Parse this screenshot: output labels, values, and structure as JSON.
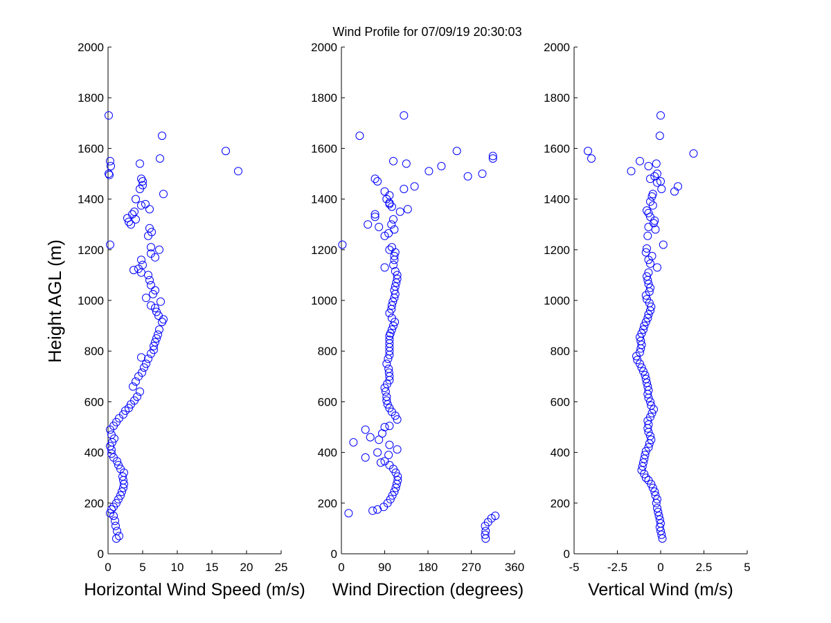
{
  "title": "Wind Profile for  07/09/19 20:30:03",
  "ylabel": "Height AGL (m)",
  "marker_color": "#0000ff",
  "chart_data": [
    {
      "type": "scatter",
      "xlabel": "Horizontal Wind Speed (m/s)",
      "xlim": [
        0,
        25
      ],
      "ylim": [
        0,
        2000
      ],
      "xticks": [
        0,
        5,
        10,
        15,
        20,
        25
      ],
      "xtick_labels": [
        "0",
        "5",
        "10",
        "15",
        "20",
        "25"
      ],
      "yticks": [
        0,
        200,
        400,
        600,
        800,
        1000,
        1200,
        1400,
        1600,
        1800,
        2000
      ],
      "ytick_labels": [
        "0",
        "200",
        "400",
        "600",
        "800",
        "1000",
        "1200",
        "1400",
        "1600",
        "1800",
        "2000"
      ],
      "points": [
        [
          1.2,
          60
        ],
        [
          1.6,
          70
        ],
        [
          1.3,
          90
        ],
        [
          1.1,
          110
        ],
        [
          1.0,
          130
        ],
        [
          0.8,
          150
        ],
        [
          0.3,
          160
        ],
        [
          0.5,
          175
        ],
        [
          0.8,
          185
        ],
        [
          1.2,
          200
        ],
        [
          1.5,
          215
        ],
        [
          1.8,
          230
        ],
        [
          2.0,
          245
        ],
        [
          2.2,
          260
        ],
        [
          2.3,
          275
        ],
        [
          2.2,
          290
        ],
        [
          2.1,
          305
        ],
        [
          2.3,
          320
        ],
        [
          1.8,
          335
        ],
        [
          1.5,
          350
        ],
        [
          1.3,
          365
        ],
        [
          0.8,
          380
        ],
        [
          0.5,
          395
        ],
        [
          0.5,
          410
        ],
        [
          0.3,
          425
        ],
        [
          0.6,
          440
        ],
        [
          0.9,
          455
        ],
        [
          0.5,
          470
        ],
        [
          0.3,
          490
        ],
        [
          0.8,
          505
        ],
        [
          1.2,
          520
        ],
        [
          1.6,
          535
        ],
        [
          2.2,
          550
        ],
        [
          2.5,
          565
        ],
        [
          3.0,
          575
        ],
        [
          3.3,
          590
        ],
        [
          3.8,
          605
        ],
        [
          4.2,
          620
        ],
        [
          4.6,
          640
        ],
        [
          3.6,
          660
        ],
        [
          4.0,
          680
        ],
        [
          4.4,
          700
        ],
        [
          4.9,
          715
        ],
        [
          5.2,
          735
        ],
        [
          5.5,
          750
        ],
        [
          5.8,
          770
        ],
        [
          4.8,
          775
        ],
        [
          6.2,
          790
        ],
        [
          6.6,
          805
        ],
        [
          6.6,
          820
        ],
        [
          6.8,
          835
        ],
        [
          7.0,
          850
        ],
        [
          7.2,
          865
        ],
        [
          7.4,
          885
        ],
        [
          7.8,
          915
        ],
        [
          8.0,
          925
        ],
        [
          7.3,
          940
        ],
        [
          7.0,
          955
        ],
        [
          6.8,
          970
        ],
        [
          6.2,
          980
        ],
        [
          7.6,
          995
        ],
        [
          5.5,
          1010
        ],
        [
          6.5,
          1025
        ],
        [
          6.8,
          1040
        ],
        [
          6.2,
          1060
        ],
        [
          6.0,
          1080
        ],
        [
          5.8,
          1100
        ],
        [
          4.8,
          1110
        ],
        [
          4.4,
          1125
        ],
        [
          3.7,
          1120
        ],
        [
          5.0,
          1140
        ],
        [
          4.8,
          1160
        ],
        [
          6.8,
          1170
        ],
        [
          6.2,
          1185
        ],
        [
          7.4,
          1200
        ],
        [
          6.2,
          1210
        ],
        [
          0.3,
          1220
        ],
        [
          5.8,
          1255
        ],
        [
          6.3,
          1270
        ],
        [
          6.0,
          1285
        ],
        [
          3.3,
          1300
        ],
        [
          3.0,
          1310
        ],
        [
          2.8,
          1325
        ],
        [
          4.0,
          1320
        ],
        [
          3.5,
          1340
        ],
        [
          3.8,
          1350
        ],
        [
          6.0,
          1360
        ],
        [
          4.8,
          1375
        ],
        [
          5.4,
          1380
        ],
        [
          4.0,
          1400
        ],
        [
          8.0,
          1420
        ],
        [
          4.6,
          1440
        ],
        [
          5.0,
          1455
        ],
        [
          5.0,
          1470
        ],
        [
          4.8,
          1480
        ],
        [
          0.2,
          1495
        ],
        [
          0.1,
          1500
        ],
        [
          18.8,
          1510
        ],
        [
          0.4,
          1530
        ],
        [
          0.3,
          1550
        ],
        [
          4.6,
          1540
        ],
        [
          7.5,
          1560
        ],
        [
          17.0,
          1590
        ],
        [
          7.8,
          1650
        ],
        [
          0.1,
          1730
        ]
      ]
    },
    {
      "type": "scatter",
      "xlabel": "Wind Direction (degrees)",
      "xlim": [
        0,
        360
      ],
      "ylim": [
        0,
        2000
      ],
      "xticks": [
        0,
        90,
        180,
        270,
        360
      ],
      "xtick_labels": [
        "0",
        "90",
        "180",
        "270",
        "360"
      ],
      "yticks": [
        0,
        200,
        400,
        600,
        800,
        1000,
        1200,
        1400,
        1600,
        1800,
        2000
      ],
      "ytick_labels": [
        "0",
        "200",
        "400",
        "600",
        "800",
        "1000",
        "1200",
        "1400",
        "1600",
        "1800",
        "2000"
      ],
      "points": [
        [
          300,
          60
        ],
        [
          299,
          75
        ],
        [
          300,
          90
        ],
        [
          299,
          110
        ],
        [
          305,
          125
        ],
        [
          312,
          140
        ],
        [
          320,
          150
        ],
        [
          15,
          160
        ],
        [
          65,
          170
        ],
        [
          75,
          175
        ],
        [
          88,
          185
        ],
        [
          96,
          200
        ],
        [
          102,
          215
        ],
        [
          106,
          230
        ],
        [
          110,
          245
        ],
        [
          113,
          260
        ],
        [
          115,
          275
        ],
        [
          117,
          290
        ],
        [
          117,
          305
        ],
        [
          113,
          320
        ],
        [
          108,
          335
        ],
        [
          100,
          350
        ],
        [
          90,
          365
        ],
        [
          82,
          360
        ],
        [
          50,
          380
        ],
        [
          98,
          390
        ],
        [
          75,
          400
        ],
        [
          116,
          412
        ],
        [
          100,
          430
        ],
        [
          25,
          440
        ],
        [
          78,
          450
        ],
        [
          60,
          460
        ],
        [
          50,
          490
        ],
        [
          85,
          475
        ],
        [
          90,
          500
        ],
        [
          100,
          505
        ],
        [
          116,
          530
        ],
        [
          112,
          545
        ],
        [
          105,
          560
        ],
        [
          100,
          575
        ],
        [
          96,
          590
        ],
        [
          94,
          605
        ],
        [
          94,
          620
        ],
        [
          92,
          640
        ],
        [
          90,
          655
        ],
        [
          95,
          670
        ],
        [
          100,
          685
        ],
        [
          100,
          700
        ],
        [
          99,
          715
        ],
        [
          98,
          730
        ],
        [
          94,
          750
        ],
        [
          97,
          770
        ],
        [
          100,
          785
        ],
        [
          100,
          800
        ],
        [
          100,
          815
        ],
        [
          100,
          830
        ],
        [
          100,
          845
        ],
        [
          100,
          860
        ],
        [
          102,
          870
        ],
        [
          105,
          885
        ],
        [
          108,
          900
        ],
        [
          111,
          915
        ],
        [
          105,
          930
        ],
        [
          100,
          950
        ],
        [
          104,
          965
        ],
        [
          105,
          980
        ],
        [
          107,
          995
        ],
        [
          110,
          1010
        ],
        [
          112,
          1025
        ],
        [
          110,
          1040
        ],
        [
          112,
          1055
        ],
        [
          114,
          1070
        ],
        [
          116,
          1085
        ],
        [
          116,
          1100
        ],
        [
          112,
          1115
        ],
        [
          90,
          1130
        ],
        [
          108,
          1140
        ],
        [
          110,
          1160
        ],
        [
          110,
          1175
        ],
        [
          112,
          1190
        ],
        [
          100,
          1200
        ],
        [
          105,
          1210
        ],
        [
          2,
          1220
        ],
        [
          90,
          1255
        ],
        [
          98,
          1265
        ],
        [
          110,
          1280
        ],
        [
          78,
          1290
        ],
        [
          104,
          1300
        ],
        [
          55,
          1300
        ],
        [
          108,
          1320
        ],
        [
          70,
          1330
        ],
        [
          70,
          1340
        ],
        [
          122,
          1350
        ],
        [
          138,
          1360
        ],
        [
          105,
          1370
        ],
        [
          100,
          1380
        ],
        [
          100,
          1385
        ],
        [
          94,
          1400
        ],
        [
          100,
          1415
        ],
        [
          90,
          1430
        ],
        [
          130,
          1440
        ],
        [
          152,
          1450
        ],
        [
          75,
          1470
        ],
        [
          70,
          1480
        ],
        [
          263,
          1490
        ],
        [
          293,
          1500
        ],
        [
          182,
          1510
        ],
        [
          208,
          1530
        ],
        [
          135,
          1540
        ],
        [
          108,
          1550
        ],
        [
          315,
          1560
        ],
        [
          315,
          1570
        ],
        [
          240,
          1590
        ],
        [
          38,
          1650
        ],
        [
          130,
          1730
        ]
      ]
    },
    {
      "type": "scatter",
      "xlabel": "Vertical Wind (m/s)",
      "xlim": [
        -5,
        5
      ],
      "ylim": [
        0,
        2000
      ],
      "xticks": [
        -5,
        -2.5,
        0,
        2.5,
        5
      ],
      "xtick_labels": [
        "-5",
        "-2.5",
        "0",
        "2.5",
        "5"
      ],
      "yticks": [
        0,
        200,
        400,
        600,
        800,
        1000,
        1200,
        1400,
        1600,
        1800,
        2000
      ],
      "ytick_labels": [
        "0",
        "200",
        "400",
        "600",
        "800",
        "1000",
        "1200",
        "1400",
        "1600",
        "1800",
        "2000"
      ],
      "points": [
        [
          0.1,
          60
        ],
        [
          0.05,
          75
        ],
        [
          0.0,
          90
        ],
        [
          -0.05,
          105
        ],
        [
          0.0,
          120
        ],
        [
          -0.05,
          135
        ],
        [
          -0.1,
          150
        ],
        [
          -0.15,
          165
        ],
        [
          -0.2,
          180
        ],
        [
          -0.25,
          200
        ],
        [
          -0.2,
          215
        ],
        [
          -0.3,
          230
        ],
        [
          -0.35,
          245
        ],
        [
          -0.45,
          260
        ],
        [
          -0.55,
          275
        ],
        [
          -0.7,
          290
        ],
        [
          -0.85,
          300
        ],
        [
          -0.95,
          315
        ],
        [
          -1.1,
          330
        ],
        [
          -1.05,
          345
        ],
        [
          -1.0,
          360
        ],
        [
          -0.95,
          375
        ],
        [
          -0.9,
          390
        ],
        [
          -0.85,
          405
        ],
        [
          -0.7,
          420
        ],
        [
          -0.65,
          435
        ],
        [
          -0.55,
          450
        ],
        [
          -0.6,
          465
        ],
        [
          -0.7,
          480
        ],
        [
          -0.75,
          495
        ],
        [
          -0.7,
          510
        ],
        [
          -0.75,
          525
        ],
        [
          -0.6,
          540
        ],
        [
          -0.5,
          555
        ],
        [
          -0.4,
          570
        ],
        [
          -0.55,
          585
        ],
        [
          -0.6,
          600
        ],
        [
          -0.7,
          615
        ],
        [
          -0.75,
          630
        ],
        [
          -0.7,
          645
        ],
        [
          -0.75,
          660
        ],
        [
          -0.8,
          675
        ],
        [
          -0.85,
          690
        ],
        [
          -0.9,
          705
        ],
        [
          -1.0,
          720
        ],
        [
          -1.1,
          735
        ],
        [
          -1.2,
          750
        ],
        [
          -1.35,
          765
        ],
        [
          -1.4,
          780
        ],
        [
          -1.2,
          795
        ],
        [
          -1.15,
          810
        ],
        [
          -1.1,
          825
        ],
        [
          -1.15,
          840
        ],
        [
          -1.2,
          855
        ],
        [
          -1.1,
          870
        ],
        [
          -1.0,
          885
        ],
        [
          -0.95,
          900
        ],
        [
          -0.85,
          915
        ],
        [
          -0.75,
          930
        ],
        [
          -0.7,
          945
        ],
        [
          -0.6,
          960
        ],
        [
          -0.55,
          975
        ],
        [
          -0.65,
          990
        ],
        [
          -0.8,
          1005
        ],
        [
          -0.85,
          1020
        ],
        [
          -0.65,
          1035
        ],
        [
          -0.6,
          1050
        ],
        [
          -0.7,
          1065
        ],
        [
          -0.75,
          1080
        ],
        [
          -0.8,
          1095
        ],
        [
          -0.7,
          1110
        ],
        [
          -0.2,
          1130
        ],
        [
          -0.6,
          1145
        ],
        [
          -0.7,
          1160
        ],
        [
          -0.5,
          1175
        ],
        [
          -0.85,
          1190
        ],
        [
          -0.8,
          1205
        ],
        [
          0.15,
          1220
        ],
        [
          -0.75,
          1255
        ],
        [
          -0.3,
          1280
        ],
        [
          -0.7,
          1290
        ],
        [
          -0.4,
          1305
        ],
        [
          -0.35,
          1315
        ],
        [
          -0.6,
          1330
        ],
        [
          -0.7,
          1345
        ],
        [
          -0.8,
          1355
        ],
        [
          -0.45,
          1375
        ],
        [
          -0.6,
          1390
        ],
        [
          -0.5,
          1410
        ],
        [
          -0.45,
          1420
        ],
        [
          0.8,
          1430
        ],
        [
          0.05,
          1440
        ],
        [
          1.0,
          1450
        ],
        [
          -0.2,
          1465
        ],
        [
          0.0,
          1470
        ],
        [
          -0.6,
          1480
        ],
        [
          -0.35,
          1490
        ],
        [
          -0.2,
          1500
        ],
        [
          -1.7,
          1510
        ],
        [
          -0.7,
          1530
        ],
        [
          -1.2,
          1550
        ],
        [
          -0.25,
          1540
        ],
        [
          -4.0,
          1560
        ],
        [
          1.9,
          1580
        ],
        [
          -4.2,
          1590
        ],
        [
          -0.05,
          1650
        ],
        [
          0.0,
          1730
        ]
      ]
    }
  ]
}
